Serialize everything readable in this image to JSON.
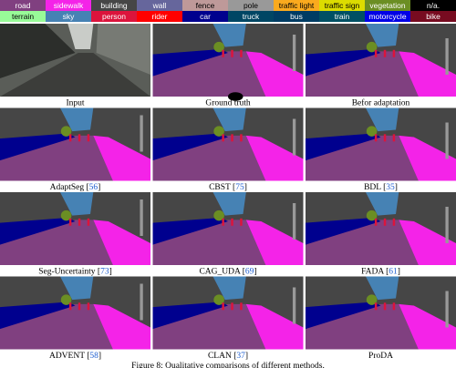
{
  "legend": [
    {
      "label": "road",
      "color": "#804080"
    },
    {
      "label": "sidewalk",
      "color": "#f423e8"
    },
    {
      "label": "building",
      "color": "#464646"
    },
    {
      "label": "wall",
      "color": "#66669c"
    },
    {
      "label": "fence",
      "color": "#be9999"
    },
    {
      "label": "pole",
      "color": "#999999"
    },
    {
      "label": "traffic light",
      "color": "#faaa1e"
    },
    {
      "label": "traffic sign",
      "color": "#dcdc00"
    },
    {
      "label": "vegetation",
      "color": "#6b8e23"
    },
    {
      "label": "n/a.",
      "color": "#000000"
    },
    {
      "label": "terrain",
      "color": "#98fb98"
    },
    {
      "label": "sky",
      "color": "#4682b4"
    },
    {
      "label": "person",
      "color": "#dc143c"
    },
    {
      "label": "rider",
      "color": "#ff0000"
    },
    {
      "label": "car",
      "color": "#00008e"
    },
    {
      "label": "truck",
      "color": "#004664"
    },
    {
      "label": "bus",
      "color": "#003c64"
    },
    {
      "label": "train",
      "color": "#005064"
    },
    {
      "label": "motorcycle",
      "color": "#0000e6"
    },
    {
      "label": "bike",
      "color": "#770b20"
    }
  ],
  "panels": [
    {
      "caption_parts": [
        "Input"
      ]
    },
    {
      "caption_parts": [
        "Ground truth"
      ]
    },
    {
      "caption_parts": [
        "Befor adaptation"
      ]
    },
    {
      "caption_parts": [
        "AdaptSeg [",
        "56",
        "]"
      ]
    },
    {
      "caption_parts": [
        "CBST [",
        "75",
        "]"
      ]
    },
    {
      "caption_parts": [
        "BDL [",
        "35",
        "]"
      ]
    },
    {
      "caption_parts": [
        "Seg-Uncertainty [",
        "73",
        "]"
      ]
    },
    {
      "caption_parts": [
        "CAG_UDA [",
        "69",
        "]"
      ]
    },
    {
      "caption_parts": [
        "FADA [",
        "61",
        "]"
      ]
    },
    {
      "caption_parts": [
        "ADVENT [",
        "58",
        "]"
      ]
    },
    {
      "caption_parts": [
        "CLAN [",
        "37",
        "]"
      ]
    },
    {
      "caption_parts": [
        "ProDA"
      ]
    }
  ],
  "figure_caption": "Figure 8: Qualitative comparisons of different methods."
}
